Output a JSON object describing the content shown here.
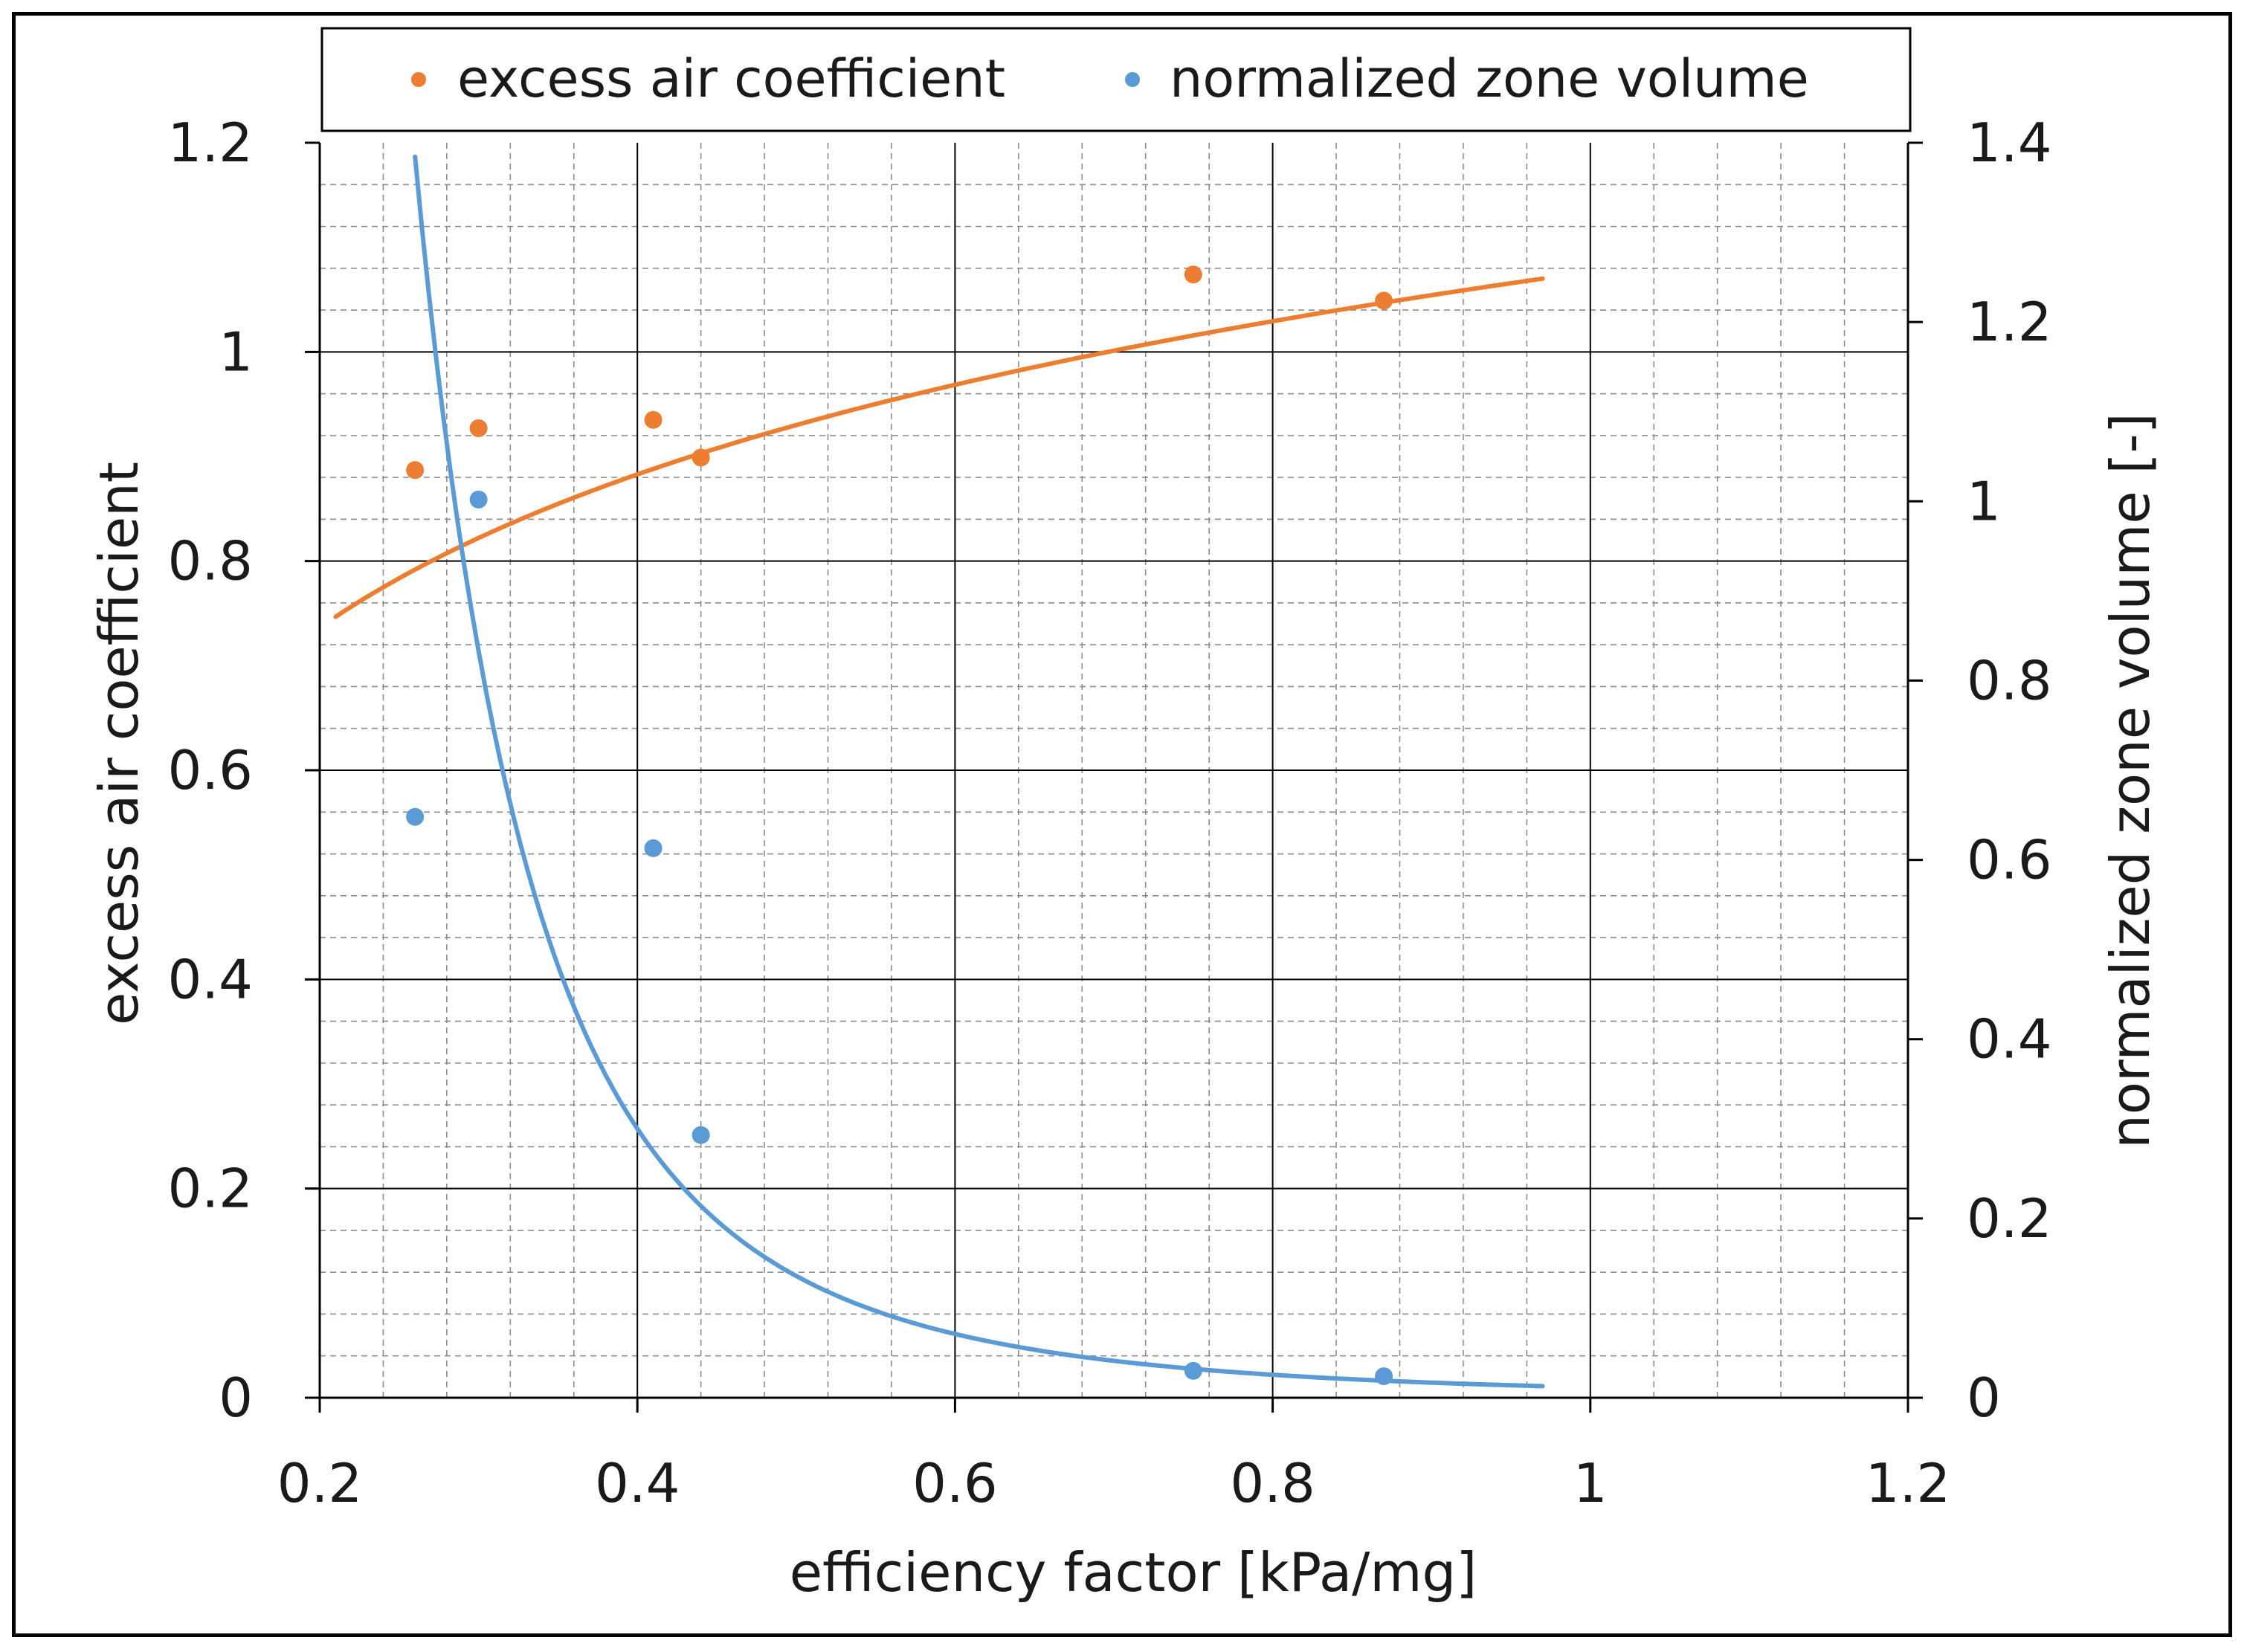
{
  "chart_data": {
    "type": "scatter",
    "title": "",
    "xlabel": "efficiency factor [kPa/mg]",
    "ylabel": "excess air coefficient",
    "y2label": "normalized zone volume [-]",
    "xlim": [
      0.2,
      1.2
    ],
    "ylim": [
      0,
      1.2
    ],
    "y2lim": [
      0,
      1.4
    ],
    "x_ticks": [
      "0.2",
      "0.4",
      "0.6",
      "0.8",
      "1",
      "1.2"
    ],
    "y_ticks": [
      "0",
      "0.2",
      "0.4",
      "0.6",
      "0.8",
      "1",
      "1.2"
    ],
    "y2_ticks": [
      "0",
      "0.2",
      "0.4",
      "0.6",
      "0.8",
      "1",
      "1.2",
      "1.4"
    ],
    "grid": true,
    "legend_position": "top",
    "series": [
      {
        "name": "excess air coefficient",
        "axis": "left",
        "color": "#ED7D31",
        "x": [
          0.26,
          0.3,
          0.41,
          0.44,
          0.75,
          0.87
        ],
        "y": [
          0.887,
          0.927,
          0.935,
          0.899,
          1.074,
          1.049
        ],
        "trendline": {
          "type": "logarithmic",
          "a": 1.0765,
          "b": 0.2113,
          "x_range": [
            0.21,
            0.97
          ]
        }
      },
      {
        "name": "normalized zone volume",
        "axis": "right",
        "color": "#5B9BD5",
        "x": [
          0.26,
          0.3,
          0.41,
          0.44,
          0.75,
          0.87
        ],
        "y": [
          0.648,
          1.002,
          0.613,
          0.293,
          0.03,
          0.024
        ],
        "trendline": {
          "type": "power",
          "a": 0.0116,
          "b": -3.55,
          "x_range": [
            0.26,
            0.97
          ]
        }
      }
    ]
  }
}
